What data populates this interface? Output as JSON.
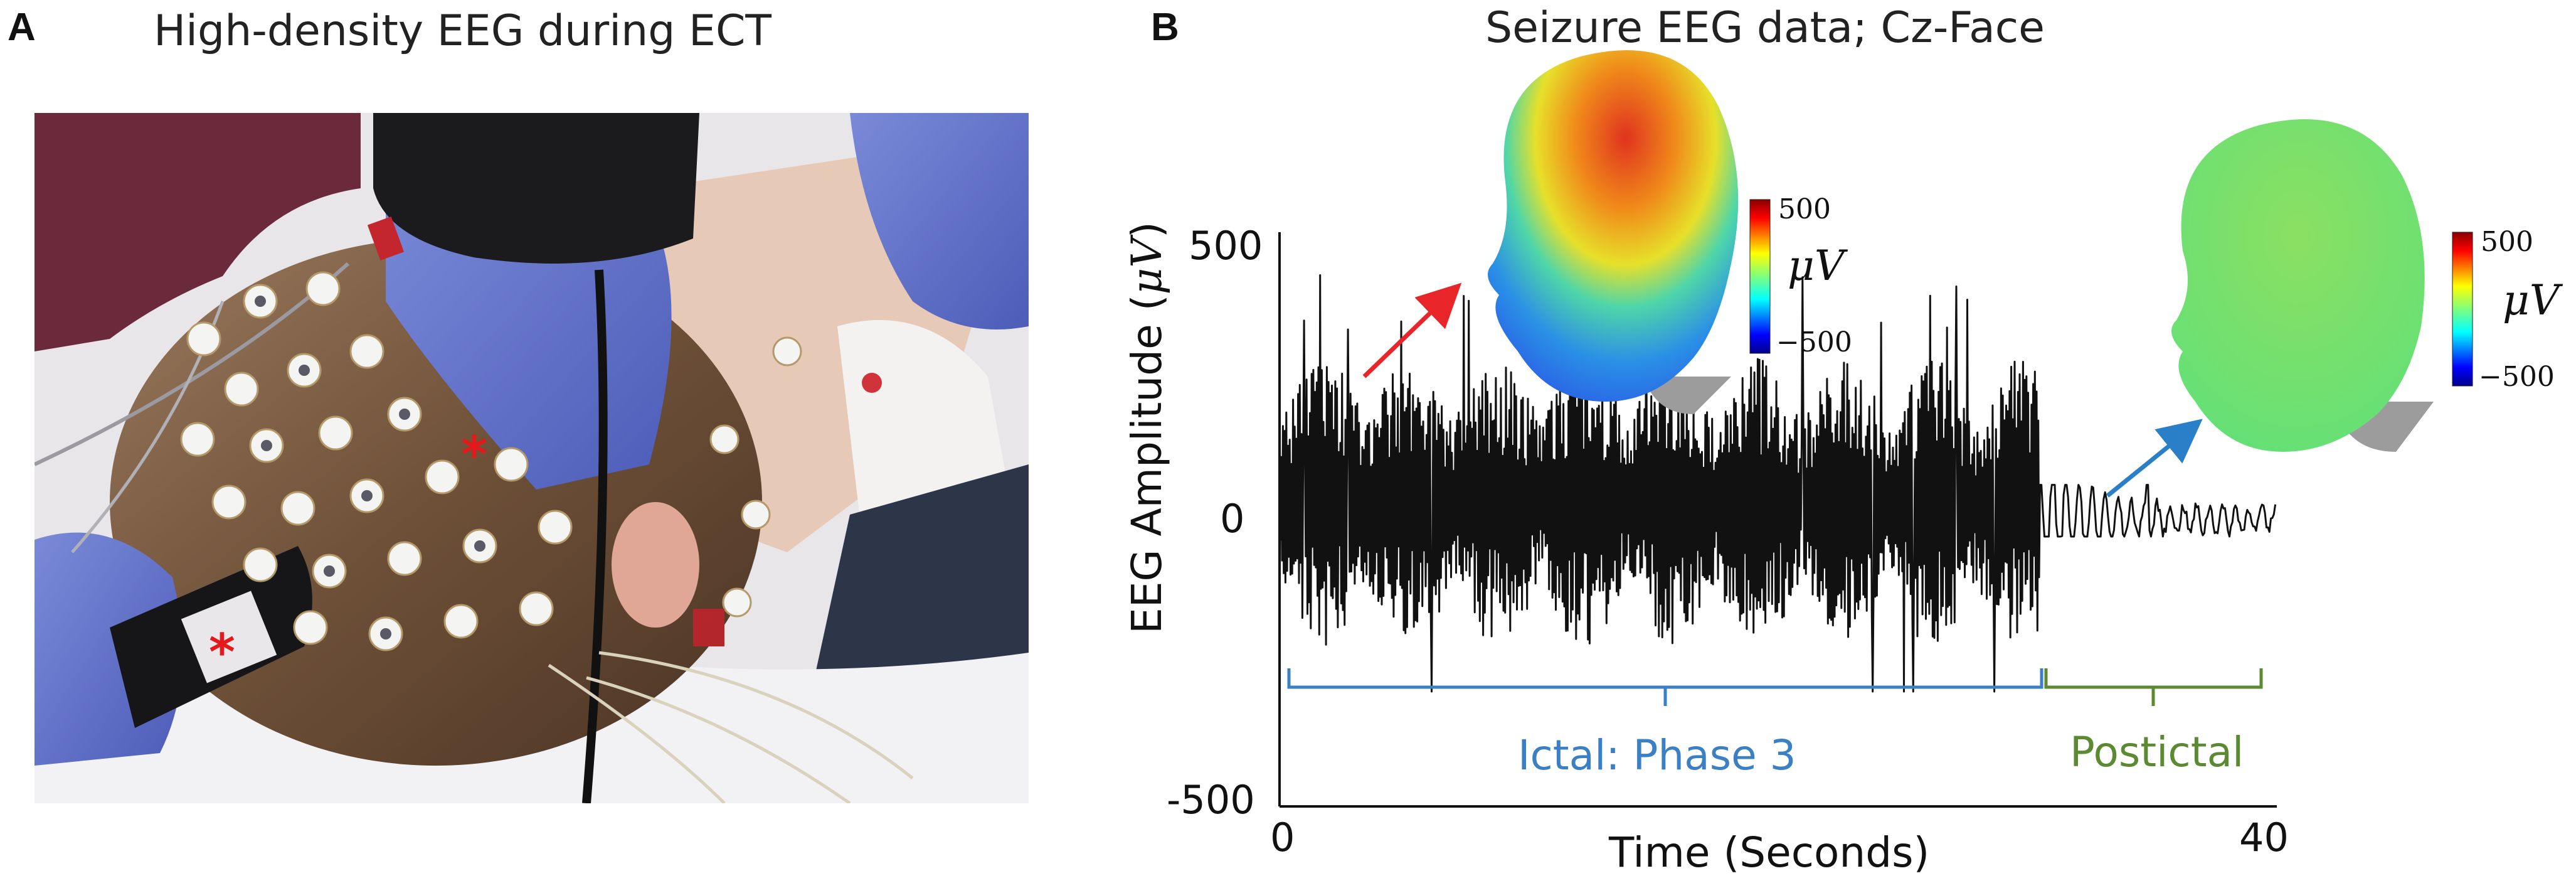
{
  "panel_a": {
    "letter": "A",
    "title": "High-density EEG during ECT",
    "marker": "*"
  },
  "panel_b": {
    "letter": "B",
    "title": "Seizure EEG data; Cz-Face",
    "ictal_label": "Ictal: Phase 3",
    "postictal_label": "Postictal",
    "colorbar_left": {
      "max": "500",
      "min": "−500",
      "unit": "μV"
    },
    "colorbar_right": {
      "max": "500",
      "min": "−500",
      "unit": "μV"
    },
    "colors": {
      "ictal": "#3b7fc4",
      "postictal": "#5b8a32",
      "arrow_ictal": "#e8262a",
      "arrow_postictal": "#2a7fc9",
      "trace": "#111111"
    }
  },
  "chart_data": {
    "type": "line",
    "xlabel": "Time (Seconds)",
    "ylabel_prefix": "EEG Amplitude (",
    "ylabel_unit": "μV",
    "ylabel_suffix": ")",
    "xlim": [
      0,
      40
    ],
    "ylim": [
      -500,
      500
    ],
    "x_ticks": [
      "0",
      "40"
    ],
    "y_ticks": [
      "500",
      "0",
      "-500"
    ],
    "grid": false,
    "segments": [
      {
        "name": "Ictal: Phase 3",
        "x_range": [
          0,
          30.5
        ],
        "amplitude_range": [
          -300,
          430
        ]
      },
      {
        "name": "Postictal",
        "x_range": [
          30.5,
          40
        ],
        "amplitude_range": [
          -30,
          60
        ]
      }
    ]
  }
}
